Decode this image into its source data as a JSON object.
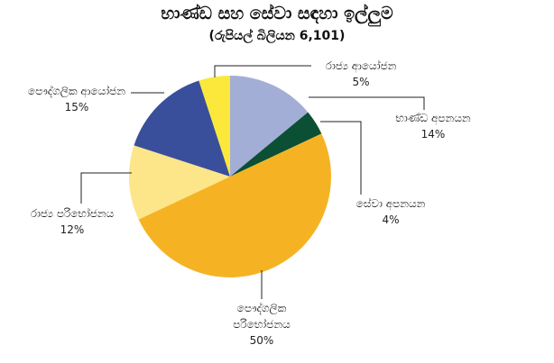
{
  "chart_data": {
    "type": "pie",
    "title": "භාණ්ඩ සහ සේවා සඳහා ඉල්ලුම",
    "subtitle": "(රුපියල් බිලියන 6,101)",
    "categories": [
      "භාණ්ඩ අපනයන",
      "සේවා අපනයන",
      "පෞද්ගලික පරිභෝජනය",
      "රාජ්‍ය පරිභෝජනය",
      "පෞද්ගලික ආයෝජන",
      "රාජ්‍ය ආයෝජන"
    ],
    "values": [
      14,
      4,
      50,
      12,
      15,
      5
    ],
    "value_labels": [
      "14%",
      "4%",
      "50%",
      "12%",
      "15%",
      "5%"
    ],
    "colors": [
      "#a3aed6",
      "#0b4f35",
      "#f5b324",
      "#fde58a",
      "#3a4f9b",
      "#fbe83a"
    ]
  }
}
